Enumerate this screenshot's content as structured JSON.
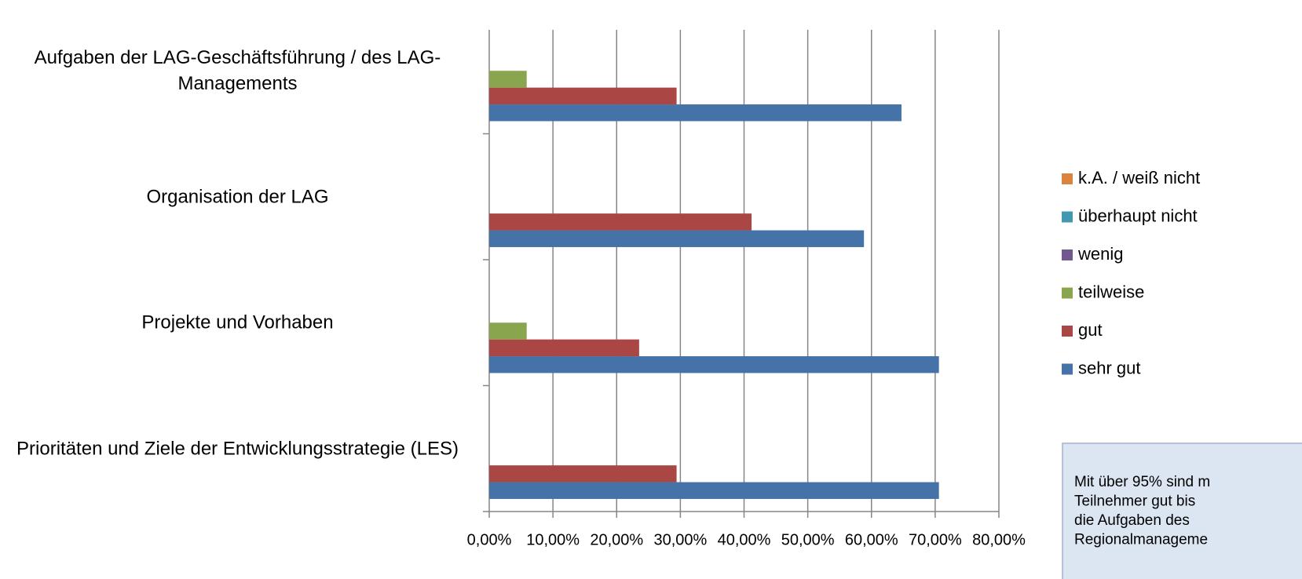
{
  "chart_data": {
    "type": "hbar",
    "categories": [
      "Aufgaben der LAG-Geschäftsführung / des LAG-Managements",
      "Organisation der LAG",
      "Projekte und Vorhaben",
      "Prioritäten und Ziele der Entwicklungsstrategie (LES)"
    ],
    "series": [
      {
        "name": "sehr gut",
        "color": "#4572a7",
        "values": [
          64.71,
          58.82,
          70.59,
          70.59
        ]
      },
      {
        "name": "gut",
        "color": "#aa4643",
        "values": [
          29.41,
          41.18,
          23.53,
          29.41
        ]
      },
      {
        "name": "teilweise",
        "color": "#89a54e",
        "values": [
          5.88,
          0,
          5.88,
          0
        ]
      },
      {
        "name": "wenig",
        "color": "#71588f",
        "values": [
          0,
          0,
          0,
          0
        ]
      },
      {
        "name": "überhaupt nicht",
        "color": "#4198af",
        "values": [
          0,
          0,
          0,
          0
        ]
      },
      {
        "name": "k.A. / weiß nicht",
        "color": "#db843d",
        "values": [
          0,
          0,
          0,
          0
        ]
      }
    ],
    "xlim": [
      0,
      80
    ],
    "xticks": [
      {
        "value": 0,
        "label": "0,00%"
      },
      {
        "value": 10,
        "label": "10,00%"
      },
      {
        "value": 20,
        "label": "20,00%"
      },
      {
        "value": 30,
        "label": "30,00%"
      },
      {
        "value": 40,
        "label": "40,00%"
      },
      {
        "value": 50,
        "label": "50,00%"
      },
      {
        "value": 60,
        "label": "60,00%"
      },
      {
        "value": 70,
        "label": "70,00%"
      },
      {
        "value": 80,
        "label": "80,00%"
      }
    ],
    "grid": true,
    "legend": "right",
    "annotation": [
      "Mit über 95% sind m",
      "Teilnehmer gut bis",
      "die Aufgaben des",
      "Regionalmanageme"
    ]
  }
}
